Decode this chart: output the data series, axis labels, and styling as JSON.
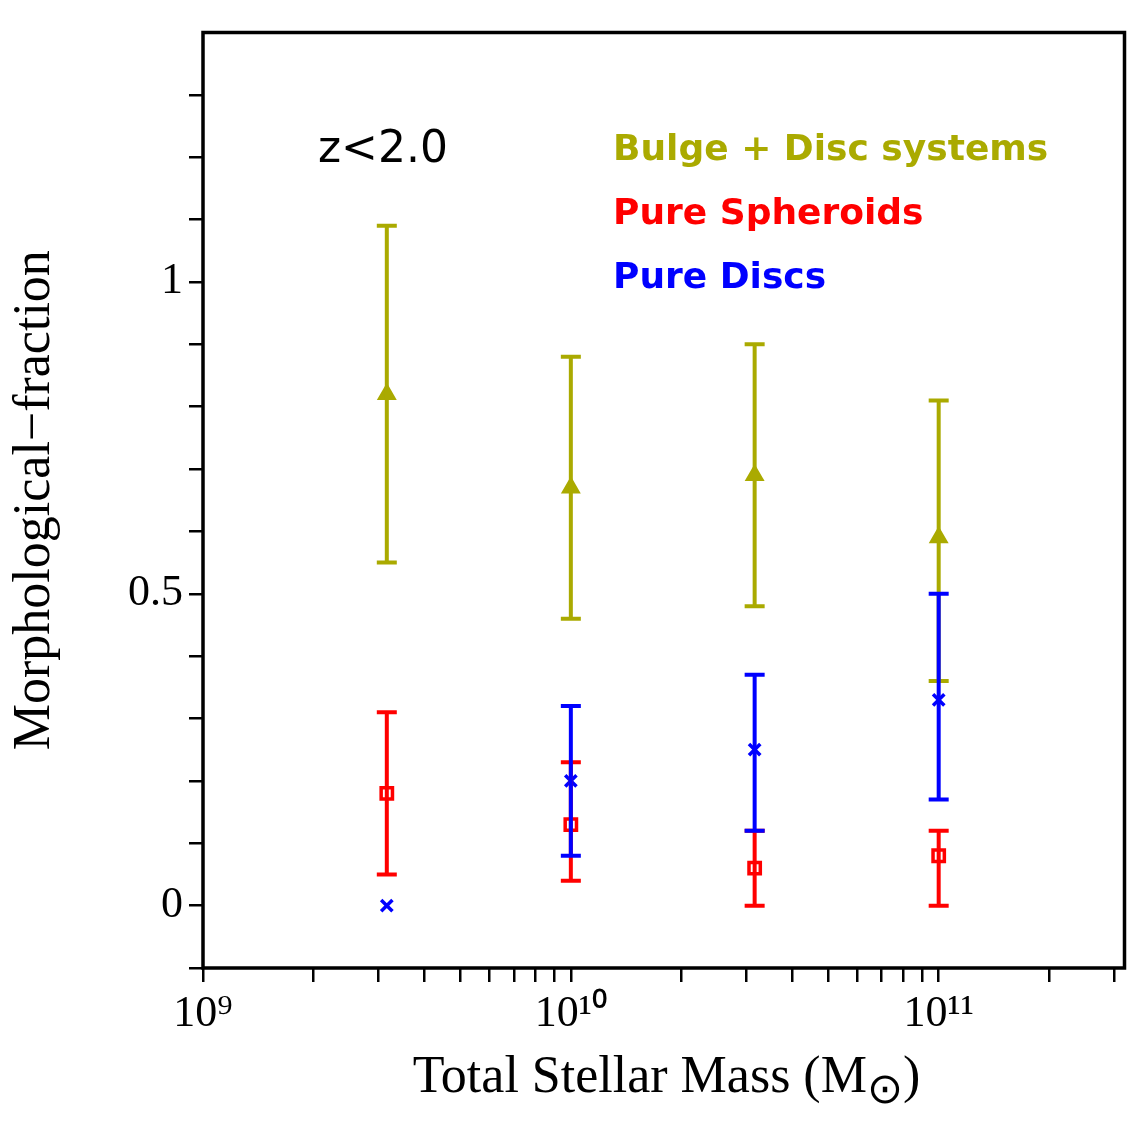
{
  "chart_data": {
    "type": "scatter",
    "xlabel": "Total Stellar Mass (M$_{⊙}$)",
    "ylabel": "Morphological−fraction",
    "annotations": [
      "z<2.0"
    ],
    "log": "x",
    "legend": "top right",
    "xlim": [
      1000000000.0,
      320000000000.0
    ],
    "xticks": [
      {
        "value": 1000000000.0,
        "label": "10⁹"
      },
      {
        "value": 2000000000.0,
        "label": null
      },
      {
        "value": 3000000000.0,
        "label": null
      },
      {
        "value": 4000000000.0,
        "label": null
      },
      {
        "value": 5000000000.0,
        "label": null
      },
      {
        "value": 6000000000.0,
        "label": null
      },
      {
        "value": 7000000000.0,
        "label": null
      },
      {
        "value": 8000000000.0,
        "label": null
      },
      {
        "value": 9000000000.0,
        "label": null
      },
      {
        "value": 10000000000.0,
        "label": "10¹⁰"
      },
      {
        "value": 20000000000.0,
        "label": null
      },
      {
        "value": 30000000000.0,
        "label": null
      },
      {
        "value": 40000000000.0,
        "label": null
      },
      {
        "value": 50000000000.0,
        "label": null
      },
      {
        "value": 60000000000.0,
        "label": null
      },
      {
        "value": 70000000000.0,
        "label": null
      },
      {
        "value": 80000000000.0,
        "label": null
      },
      {
        "value": 90000000000.0,
        "label": null
      },
      {
        "value": 100000000000.0,
        "label": "10¹¹"
      },
      {
        "value": 200000000000.0,
        "label": null
      },
      {
        "value": 300000000000.0,
        "label": null
      }
    ],
    "ylim": [
      -0.1,
      1.4
    ],
    "yticks": [
      {
        "value": -0.1,
        "label": null
      },
      0,
      {
        "value": 0.1,
        "label": null
      },
      {
        "value": 0.2,
        "label": null
      },
      {
        "value": 0.3,
        "label": null
      },
      {
        "value": 0.4,
        "label": null
      },
      0.5,
      {
        "value": 0.6,
        "label": null
      },
      {
        "value": 0.7,
        "label": null
      },
      {
        "value": 0.8,
        "label": null
      },
      {
        "value": 0.9,
        "label": null
      },
      1,
      {
        "value": 1.1,
        "label": null
      },
      {
        "value": 1.2,
        "label": null
      },
      {
        "value": 1.3,
        "label": null
      }
    ],
    "series": [
      {
        "name": "Bulge + Disc systems",
        "color": "#aaaa00",
        "marker": "triangle",
        "x": [
          3160000000.0,
          10000000000.0,
          31600000000.0,
          100000000000.0
        ],
        "values": [
          0.82,
          0.67,
          0.69,
          0.59
        ],
        "errors": [
          [
            0.55,
            1.09
          ],
          [
            0.46,
            0.88
          ],
          [
            0.48,
            0.9
          ],
          [
            0.36,
            0.81
          ]
        ]
      },
      {
        "name": "Pure Spheroids",
        "color": "#ff0000",
        "marker": "square",
        "x": [
          3160000000.0,
          10000000000.0,
          31600000000.0,
          100000000000.0
        ],
        "values": [
          0.18,
          0.13,
          0.06,
          0.08
        ],
        "errors": [
          [
            0.05,
            0.31
          ],
          [
            0.04,
            0.23
          ],
          [
            0,
            0.12
          ],
          [
            0,
            0.12
          ]
        ]
      },
      {
        "name": "Pure Discs",
        "color": "#0000ff",
        "marker": "cross",
        "x": [
          3160000000.0,
          10000000000.0,
          31600000000.0,
          100000000000.0
        ],
        "values": [
          0,
          0.2,
          0.25,
          0.33
        ],
        "errors": [
          null,
          [
            0.08,
            0.32
          ],
          [
            0.12,
            0.37
          ],
          [
            0.17,
            0.5
          ]
        ]
      }
    ]
  }
}
